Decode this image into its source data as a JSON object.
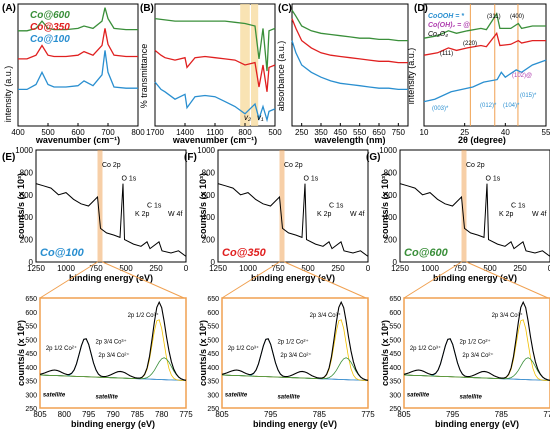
{
  "chart_data": [
    {
      "panel_label": "(A)",
      "type": "line",
      "xlabel": "wavenumber (cm⁻¹)",
      "ylabel": "intensity (a.u.)",
      "xticks": [
        "400",
        "500",
        "600",
        "700",
        "800"
      ],
      "xlim": [
        400,
        800
      ],
      "series": [
        {
          "name": "Co@600",
          "color": "#3a8f3a",
          "x": [
            400,
            430,
            460,
            480,
            500,
            520,
            560,
            600,
            620,
            650,
            680,
            690,
            700,
            720,
            760,
            800
          ],
          "y": [
            0.78,
            0.78,
            0.8,
            0.86,
            0.8,
            0.79,
            0.79,
            0.8,
            0.82,
            0.8,
            0.86,
            0.97,
            0.88,
            0.8,
            0.79,
            0.79
          ]
        },
        {
          "name": "Co@350",
          "color": "#e02020",
          "x": [
            400,
            430,
            460,
            480,
            500,
            520,
            560,
            600,
            620,
            650,
            680,
            690,
            700,
            720,
            760,
            800
          ],
          "y": [
            0.55,
            0.55,
            0.58,
            0.66,
            0.58,
            0.57,
            0.57,
            0.58,
            0.61,
            0.58,
            0.66,
            0.8,
            0.67,
            0.58,
            0.57,
            0.57
          ]
        },
        {
          "name": "Co@100",
          "color": "#2a8fd0",
          "x": [
            400,
            430,
            460,
            480,
            500,
            520,
            560,
            600,
            620,
            650,
            680,
            690,
            700,
            720,
            760,
            800
          ],
          "y": [
            0.3,
            0.3,
            0.34,
            0.44,
            0.34,
            0.32,
            0.32,
            0.33,
            0.37,
            0.33,
            0.42,
            0.62,
            0.44,
            0.32,
            0.31,
            0.31
          ]
        }
      ]
    },
    {
      "panel_label": "(B)",
      "type": "line",
      "xlabel": "wavenumber (cm⁻¹)",
      "ylabel": "% transmittance",
      "xticks": [
        "1700",
        "1400",
        "1100",
        "800",
        "500"
      ],
      "xlim": [
        1700,
        500
      ],
      "annotations": [
        "v₂",
        "v₁"
      ],
      "series": [
        {
          "name": "Co@600",
          "color": "#3a8f3a",
          "x": [
            1700,
            1600,
            1500,
            1400,
            1300,
            1200,
            1100,
            1000,
            900,
            800,
            700,
            660,
            620,
            580,
            560,
            500
          ],
          "y": [
            0.88,
            0.87,
            0.86,
            0.86,
            0.86,
            0.86,
            0.86,
            0.86,
            0.85,
            0.84,
            0.82,
            0.55,
            0.8,
            0.45,
            0.78,
            0.8
          ]
        },
        {
          "name": "Co@350",
          "color": "#e02020",
          "x": [
            1700,
            1640,
            1600,
            1500,
            1400,
            1380,
            1300,
            1200,
            1100,
            1000,
            900,
            800,
            700,
            660,
            620,
            580,
            560,
            500
          ],
          "y": [
            0.62,
            0.58,
            0.56,
            0.54,
            0.56,
            0.48,
            0.56,
            0.57,
            0.56,
            0.55,
            0.54,
            0.5,
            0.52,
            0.32,
            0.5,
            0.28,
            0.48,
            0.5
          ]
        },
        {
          "name": "Co@100",
          "color": "#2a8fd0",
          "x": [
            1700,
            1640,
            1600,
            1500,
            1400,
            1380,
            1300,
            1200,
            1100,
            1000,
            900,
            800,
            700,
            660,
            620,
            580,
            560,
            500
          ],
          "y": [
            0.36,
            0.3,
            0.28,
            0.22,
            0.26,
            0.15,
            0.24,
            0.25,
            0.24,
            0.2,
            0.16,
            0.1,
            0.18,
            0.06,
            0.16,
            0.05,
            0.12,
            0.14
          ]
        }
      ]
    },
    {
      "panel_label": "(C)",
      "type": "line",
      "xlabel": "wavelength (nm)",
      "ylabel": "absorbance (a.u.)",
      "xticks": [
        "250",
        "350",
        "450",
        "550",
        "650",
        "750"
      ],
      "xlim": [
        200,
        800
      ],
      "series": [
        {
          "name": "Co@600",
          "color": "#3a8f3a",
          "x": [
            200,
            220,
            250,
            300,
            350,
            400,
            450,
            500,
            550,
            600,
            650,
            700,
            750,
            800
          ],
          "y": [
            0.95,
            0.9,
            0.82,
            0.78,
            0.76,
            0.75,
            0.74,
            0.73,
            0.72,
            0.72,
            0.71,
            0.71,
            0.7,
            0.7
          ]
        },
        {
          "name": "Co@350",
          "color": "#e02020",
          "x": [
            200,
            220,
            250,
            300,
            350,
            400,
            450,
            500,
            550,
            600,
            650,
            700,
            750,
            800
          ],
          "y": [
            0.88,
            0.8,
            0.7,
            0.64,
            0.6,
            0.58,
            0.57,
            0.56,
            0.55,
            0.54,
            0.53,
            0.53,
            0.52,
            0.52
          ]
        },
        {
          "name": "Co@100",
          "color": "#2a8fd0",
          "x": [
            200,
            220,
            250,
            300,
            350,
            400,
            450,
            500,
            550,
            600,
            650,
            700,
            750,
            800
          ],
          "y": [
            0.7,
            0.6,
            0.5,
            0.44,
            0.4,
            0.37,
            0.35,
            0.34,
            0.33,
            0.32,
            0.31,
            0.31,
            0.3,
            0.3
          ]
        }
      ]
    },
    {
      "panel_label": "(D)",
      "type": "line",
      "xlabel": "2θ (degree)",
      "ylabel": "intensity (a.u.)",
      "xticks": [
        "10",
        "25",
        "40",
        "55"
      ],
      "xlim": [
        10,
        55
      ],
      "legend": [
        "CoOOH = *",
        "Co(OH)₂ = @",
        "Co₃O₄"
      ],
      "peak_labels": [
        "(111)",
        "(220)",
        "(311)",
        "(400)",
        "(102)@",
        "(003)*",
        "(012)*",
        "(104)*",
        "(015)*"
      ],
      "series": [
        {
          "name": "Co@600",
          "color": "#3a8f3a",
          "x": [
            10,
            15,
            19,
            22,
            26,
            31,
            33,
            36.8,
            38,
            42,
            44.8,
            46,
            50,
            55
          ],
          "y": [
            0.72,
            0.74,
            0.78,
            0.76,
            0.78,
            0.8,
            0.79,
            0.92,
            0.8,
            0.8,
            0.84,
            0.8,
            0.82,
            0.82
          ]
        },
        {
          "name": "Co@350",
          "color": "#e02020",
          "x": [
            10,
            15,
            19,
            22,
            26,
            31,
            33,
            36.8,
            38,
            42,
            44.8,
            46,
            50,
            55
          ],
          "y": [
            0.58,
            0.6,
            0.64,
            0.62,
            0.64,
            0.66,
            0.65,
            0.76,
            0.66,
            0.67,
            0.7,
            0.68,
            0.7,
            0.7
          ]
        },
        {
          "name": "Co@100",
          "color": "#2a8fd0",
          "x": [
            10,
            14,
            20,
            24,
            28,
            32,
            37,
            38.5,
            40,
            44,
            46,
            50,
            55
          ],
          "y": [
            0.2,
            0.22,
            0.28,
            0.3,
            0.32,
            0.36,
            0.38,
            0.44,
            0.4,
            0.46,
            0.44,
            0.5,
            0.54
          ]
        }
      ]
    }
  ],
  "xps": [
    {
      "panel_label": "(E)",
      "sample": "Co@100",
      "sample_color": "#2a8fd0",
      "survey": {
        "yticks": [
          "0",
          "200",
          "400",
          "600",
          "800",
          "1000"
        ],
        "xticks": [
          "1250",
          "1000",
          "750",
          "500",
          "250",
          "0"
        ],
        "ylabel": "counts/s (x 10³)",
        "xlabel": "binding energy (eV)",
        "peaks": [
          "Co 2p",
          "O 1s",
          "C 1s",
          "K 2p",
          "W 4f"
        ]
      },
      "detail": {
        "yticks": [
          "250",
          "300",
          "350",
          "400",
          "450",
          "500",
          "550",
          "600",
          "650"
        ],
        "xticks": [
          "805",
          "800",
          "795",
          "790",
          "785",
          "780",
          "775"
        ],
        "ylabel": "counts/s (x 10²)",
        "xlabel": "binding energy (eV)",
        "labels": [
          "2p 1/2 Co³⁺",
          "2p 1/2 Co²⁺",
          "2p 3/4 Co³⁺",
          "2p 3/4 Co²⁺",
          "satellite",
          "satellite"
        ]
      }
    },
    {
      "panel_label": "(F)",
      "sample": "Co@350",
      "sample_color": "#e02020",
      "survey": {
        "yticks": [
          "0",
          "200",
          "400",
          "600",
          "800",
          "1000"
        ],
        "xticks": [
          "1250",
          "1000",
          "750",
          "500",
          "250",
          "0"
        ],
        "ylabel": "counts/s (x 10³)",
        "xlabel": "binding energy (eV)",
        "peaks": [
          "Co 2p",
          "O 1s",
          "C 1s",
          "K 2p",
          "W 4f"
        ]
      },
      "detail": {
        "yticks": [
          "250",
          "300",
          "350",
          "400",
          "450",
          "500",
          "550",
          "600",
          "650"
        ],
        "xticks": [
          "805",
          "795",
          "785",
          "775"
        ],
        "ylabel": "counts/s (x 10²)",
        "xlabel": "binding energy (eV)",
        "labels": [
          "2p 3/4 Co³⁺",
          "2p 1/2 Co³⁺",
          "2p 1/2 Co²⁺",
          "2p 3/4 Co²⁺",
          "satellite",
          "satellite"
        ]
      }
    },
    {
      "panel_label": "(G)",
      "sample": "Co@600",
      "sample_color": "#3a8f3a",
      "survey": {
        "yticks": [
          "0",
          "200",
          "400",
          "600",
          "800",
          "1000"
        ],
        "xticks": [
          "1250",
          "1000",
          "750",
          "500",
          "250",
          "0"
        ],
        "ylabel": "counts/s (x 10³)",
        "xlabel": "binding energy (eV)",
        "peaks": [
          "Co 2p",
          "O 1s",
          "C 1s",
          "K 2p",
          "W 4f"
        ]
      },
      "detail": {
        "yticks": [
          "250",
          "300",
          "350",
          "400",
          "450",
          "500",
          "550",
          "600",
          "650"
        ],
        "xticks": [
          "805",
          "795",
          "785",
          "775"
        ],
        "ylabel": "counts/s (x 10²)",
        "xlabel": "binding energy (eV)",
        "labels": [
          "2p 3/4 Co³⁺",
          "2p 1/2 Co³⁺",
          "2p 1/2 Co²⁺",
          "2p 3/4 Co²⁺",
          "satellite",
          "satellite"
        ]
      }
    }
  ],
  "text": {
    "A_label": "(A)",
    "B_label": "(B)",
    "C_label": "(C)",
    "D_label": "(D)",
    "E_label": "(E)",
    "F_label": "(F)",
    "G_label": "(G)",
    "A_legend_600": "Co@600",
    "A_legend_350": "Co@350",
    "A_legend_100": "Co@100",
    "A_ylabel": "intensity (a.u.)",
    "A_xlabel": "wavenumber (cm⁻¹)",
    "B_ylabel": "% transmittance",
    "B_xlabel": "wavenumber (cm⁻¹)",
    "B_v2": "v₂",
    "B_v1": "v₁",
    "C_ylabel": "absorbance (a.u.)",
    "C_xlabel": "wavelength (nm)",
    "D_ylabel": "intensity (a.u.)",
    "D_xlabel": "2θ (degree)",
    "D_leg1": "CoOOH = *",
    "D_leg2": "Co(OH)₂ = @",
    "D_leg3": "Co₃O₄",
    "D_111": "(111)",
    "D_220": "(220)",
    "D_311": "(311)",
    "D_400": "(400)",
    "D_102": "(102)@",
    "D_003": "(003)*",
    "D_012": "(012)*",
    "D_104": "(104)*",
    "D_015": "(015)*"
  }
}
